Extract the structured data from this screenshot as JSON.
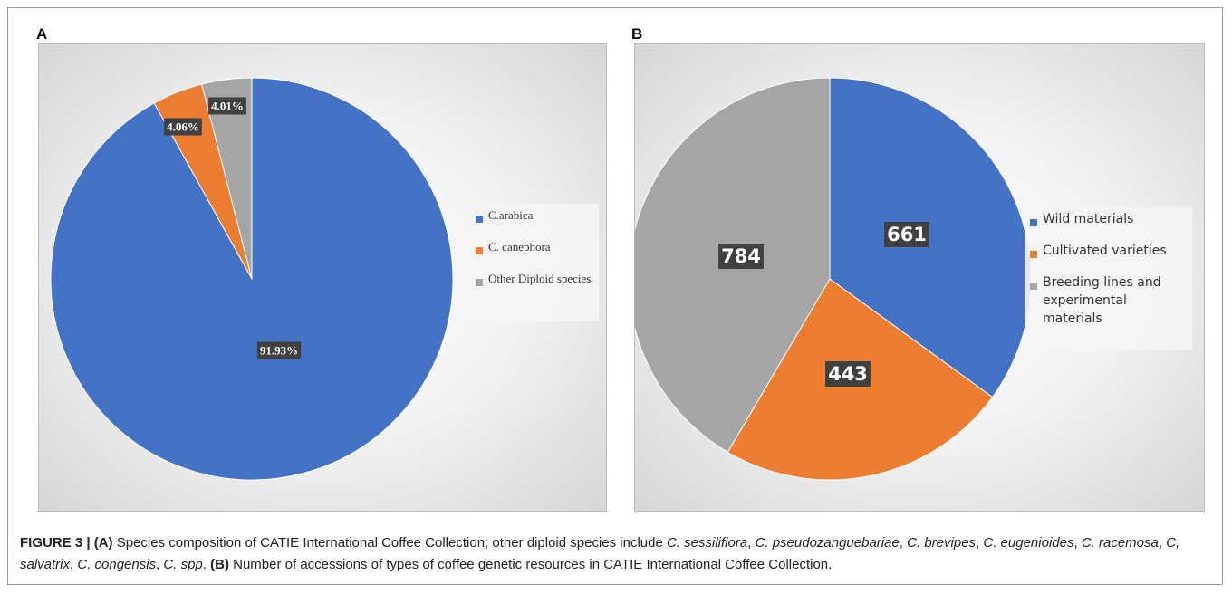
{
  "chart_data": [
    {
      "type": "pie",
      "panel": "A",
      "categories": [
        "C.arabica",
        "C. canephora",
        "Other Diploid species"
      ],
      "values": [
        91.93,
        4.06,
        4.01
      ],
      "value_labels": [
        "91.93%",
        "4.06%",
        "4.01%"
      ],
      "colors": [
        "#4472c4",
        "#ed7d31",
        "#a5a5a5"
      ]
    },
    {
      "type": "pie",
      "panel": "B",
      "categories": [
        "Wild materials",
        "Cultivated varieties",
        "Breeding lines and experimental materials"
      ],
      "values": [
        661,
        443,
        784
      ],
      "colors": [
        "#4472c4",
        "#ed7d31",
        "#a5a5a5"
      ]
    }
  ],
  "caption": [
    {
      "text": "FIGURE 3 | (A)",
      "style": "bold"
    },
    {
      "text": " Species composition of CATIE International Coffee Collection; other diploid species include ",
      "style": "normal"
    },
    {
      "text": "C. sessiliflora",
      "style": "italic"
    },
    {
      "text": ", ",
      "style": "normal"
    },
    {
      "text": "C. pseudozanguebariae",
      "style": "italic"
    },
    {
      "text": ", ",
      "style": "normal"
    },
    {
      "text": "C. brevipes",
      "style": "italic"
    },
    {
      "text": ", ",
      "style": "normal"
    },
    {
      "text": "C. eugenioides",
      "style": "italic"
    },
    {
      "text": ", ",
      "style": "normal"
    },
    {
      "text": "C. racemosa",
      "style": "italic"
    },
    {
      "text": ", ",
      "style": "normal"
    },
    {
      "text": "C, salvatrix",
      "style": "italic"
    },
    {
      "text": ", ",
      "style": "normal"
    },
    {
      "text": "C. congensis",
      "style": "italic"
    },
    {
      "text": ", ",
      "style": "normal"
    },
    {
      "text": "C. spp",
      "style": "italic"
    },
    {
      "text": ". ",
      "style": "normal"
    },
    {
      "text": "(B)",
      "style": "bold"
    },
    {
      "text": " Number of accessions of types of coffee genetic resources in CATIE International Coffee Collection.",
      "style": "normal"
    }
  ]
}
